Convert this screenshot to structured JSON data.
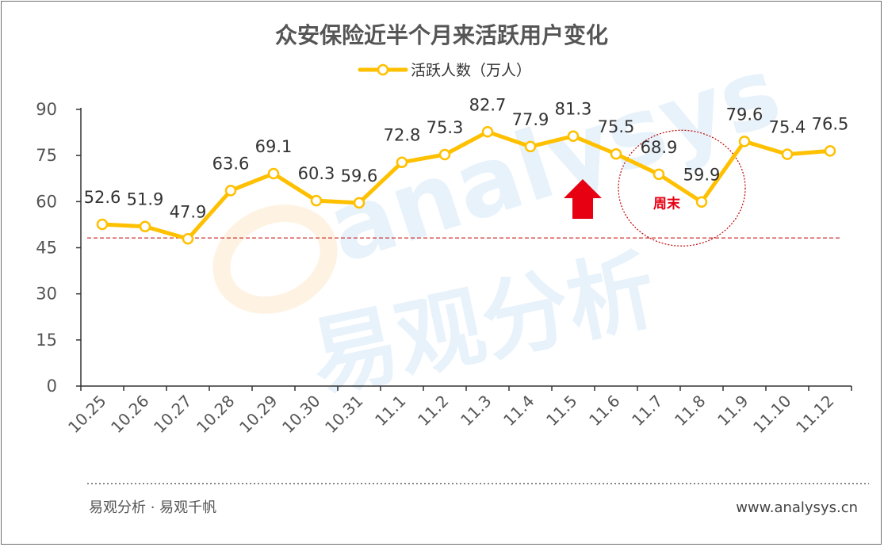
{
  "chart_data": {
    "type": "line",
    "title": "众安保险近半个月来活跃用户变化",
    "categories": [
      "10.25",
      "10.26",
      "10.27",
      "10.28",
      "10.29",
      "10.30",
      "10.31",
      "11.1",
      "11.2",
      "11.3",
      "11.4",
      "11.5",
      "11.6",
      "11.7",
      "11.8",
      "11.9",
      "11.10",
      "11.12"
    ],
    "series": [
      {
        "name": "活跃人数（万人）",
        "values": [
          52.6,
          51.9,
          47.9,
          63.6,
          69.1,
          60.3,
          59.6,
          72.8,
          75.3,
          82.7,
          77.9,
          81.3,
          75.5,
          68.9,
          59.9,
          79.6,
          75.4,
          76.5
        ]
      }
    ],
    "ylim": [
      0,
      90
    ],
    "yticks": [
      0,
      15,
      30,
      45,
      60,
      75,
      90
    ],
    "reference_line": 48.2,
    "legend_position": "top-center",
    "grid": false,
    "line_color": "#ffc000",
    "reference_color": "#c00000",
    "arrow_color": "#e60012",
    "annotations": {
      "weekend_label": "周末",
      "weekend_categories": [
        "11.7",
        "11.8"
      ],
      "arrow_category": "11.5"
    }
  },
  "footer": {
    "left": "易观分析 · 易观千帆",
    "right": "www.analysys.cn"
  },
  "watermark": {
    "logo_text": "analysys",
    "cn_text": "易观分析"
  }
}
